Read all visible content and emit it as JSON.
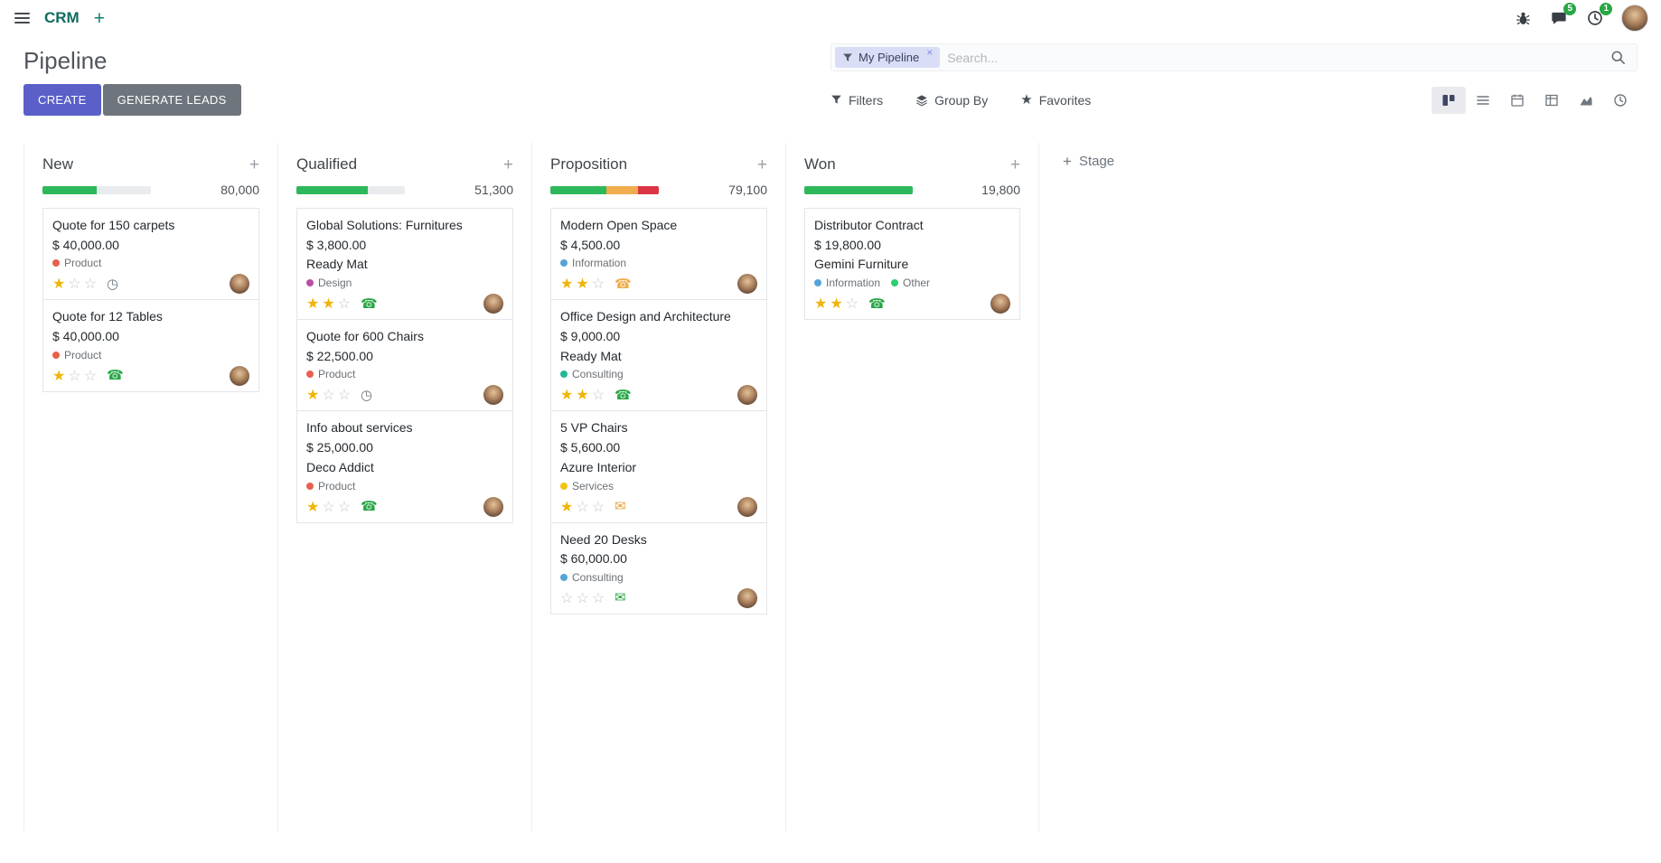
{
  "icons": {
    "plus": "+",
    "clock": "◷",
    "phone": "☎",
    "mail": "✉",
    "star_filled": "★",
    "star_empty": "☆",
    "facet_remove": "×",
    "favorites_star": "★"
  },
  "colors": {
    "primary_button": "#5a60c8",
    "secondary_button": "#6e757c",
    "success": "#2eb85c",
    "warning": "#f0ad4e",
    "danger": "#dc3545",
    "muted_bar": "#e9ecef",
    "star_filled": "#efb50a",
    "badge": "#28a745"
  },
  "navbar": {
    "app_name": "CRM",
    "messages_badge": "5",
    "activities_badge": "1"
  },
  "control_panel": {
    "title": "Pipeline",
    "create_label": "CREATE",
    "generate_leads_label": "GENERATE LEADS",
    "facet_label": "My Pipeline",
    "search_placeholder": "Search...",
    "filters_label": "Filters",
    "group_by_label": "Group By",
    "favorites_label": "Favorites"
  },
  "board": {
    "add_stage_label": "Stage",
    "columns": [
      {
        "name": "New",
        "total": "80,000",
        "progress": [
          {
            "color": "#2eb85c",
            "pct": 50
          },
          {
            "color": "#e9ecef",
            "pct": 50
          }
        ],
        "cards": [
          {
            "title": "Quote for 150 carpets",
            "amount": "$ 40,000.00",
            "tags": [
              {
                "label": "Product",
                "color": "#e8604c"
              }
            ],
            "stars": 1,
            "activity": {
              "type": "clock",
              "color": "#6c757d"
            }
          },
          {
            "title": "Quote for 12 Tables",
            "amount": "$ 40,000.00",
            "tags": [
              {
                "label": "Product",
                "color": "#e8604c"
              }
            ],
            "stars": 1,
            "activity": {
              "type": "phone",
              "color": "#28a745"
            }
          }
        ]
      },
      {
        "name": "Qualified",
        "total": "51,300",
        "progress": [
          {
            "color": "#2eb85c",
            "pct": 66
          },
          {
            "color": "#e9ecef",
            "pct": 34
          }
        ],
        "cards": [
          {
            "title": "Global Solutions: Furnitures",
            "amount": "$ 3,800.00",
            "partner": "Ready Mat",
            "tags": [
              {
                "label": "Design",
                "color": "#b84fa8"
              }
            ],
            "stars": 2,
            "activity": {
              "type": "phone",
              "color": "#28a745"
            }
          },
          {
            "title": "Quote for 600 Chairs",
            "amount": "$ 22,500.00",
            "tags": [
              {
                "label": "Product",
                "color": "#e8604c"
              }
            ],
            "stars": 1,
            "activity": {
              "type": "clock",
              "color": "#6c757d"
            }
          },
          {
            "title": "Info about services",
            "amount": "$ 25,000.00",
            "partner": "Deco Addict",
            "tags": [
              {
                "label": "Product",
                "color": "#e8604c"
              }
            ],
            "stars": 1,
            "activity": {
              "type": "phone",
              "color": "#28a745"
            }
          }
        ]
      },
      {
        "name": "Proposition",
        "total": "79,100",
        "progress": [
          {
            "color": "#2eb85c",
            "pct": 52
          },
          {
            "color": "#f0ad4e",
            "pct": 29
          },
          {
            "color": "#dc3545",
            "pct": 19
          }
        ],
        "cards": [
          {
            "title": "Modern Open Space",
            "amount": "$ 4,500.00",
            "tags": [
              {
                "label": "Information",
                "color": "#56a3d8"
              }
            ],
            "stars": 2,
            "activity": {
              "type": "phone",
              "color": "#f0ad4e"
            }
          },
          {
            "title": "Office Design and Architecture",
            "amount": "$ 9,000.00",
            "partner": "Ready Mat",
            "tags": [
              {
                "label": "Consulting",
                "color": "#21b799"
              }
            ],
            "stars": 2,
            "activity": {
              "type": "phone",
              "color": "#28a745"
            }
          },
          {
            "title": "5 VP Chairs",
            "amount": "$ 5,600.00",
            "partner": "Azure Interior",
            "tags": [
              {
                "label": "Services",
                "color": "#f1c40f"
              }
            ],
            "stars": 1,
            "activity": {
              "type": "mail",
              "color": "#e8a33d"
            }
          },
          {
            "title": "Need 20 Desks",
            "amount": "$ 60,000.00",
            "tags": [
              {
                "label": "Consulting",
                "color": "#56a3d8"
              }
            ],
            "stars": 0,
            "activity": {
              "type": "mail",
              "color": "#28a745"
            }
          }
        ]
      },
      {
        "name": "Won",
        "total": "19,800",
        "progress": [
          {
            "color": "#2eb85c",
            "pct": 100
          }
        ],
        "cards": [
          {
            "title": "Distributor Contract",
            "amount": "$ 19,800.00",
            "partner": "Gemini Furniture",
            "tags": [
              {
                "label": "Information",
                "color": "#56a3d8"
              },
              {
                "label": "Other",
                "color": "#2ecc71"
              }
            ],
            "stars": 2,
            "activity": {
              "type": "phone",
              "color": "#28a745"
            }
          }
        ]
      }
    ]
  }
}
